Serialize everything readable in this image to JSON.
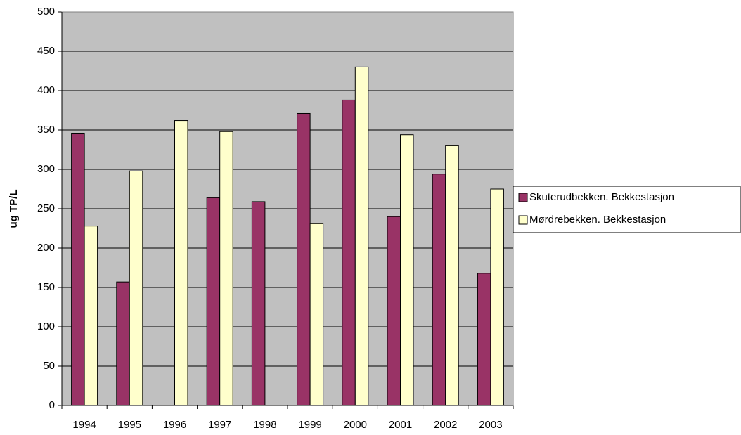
{
  "chart_data": {
    "type": "bar",
    "y_label": "ug TP/L",
    "categories": [
      "1994",
      "1995",
      "1996",
      "1997",
      "1998",
      "1999",
      "2000",
      "2001",
      "2002",
      "2003"
    ],
    "series": [
      {
        "name": "Skuterudbekken. Bekkestasjon",
        "color": "#993366",
        "values": [
          346,
          157,
          null,
          264,
          259,
          371,
          388,
          240,
          294,
          168
        ]
      },
      {
        "name": "Mørdrebekken. Bekkestasjon",
        "color": "#ffffcc",
        "values": [
          228,
          298,
          362,
          348,
          null,
          231,
          430,
          344,
          330,
          275
        ]
      }
    ],
    "ylim": [
      0,
      500
    ],
    "yticks": [
      0,
      50,
      100,
      150,
      200,
      250,
      300,
      350,
      400,
      450,
      500
    ],
    "grid": true,
    "plot_background": "#c0c0c0",
    "legend": "right"
  }
}
